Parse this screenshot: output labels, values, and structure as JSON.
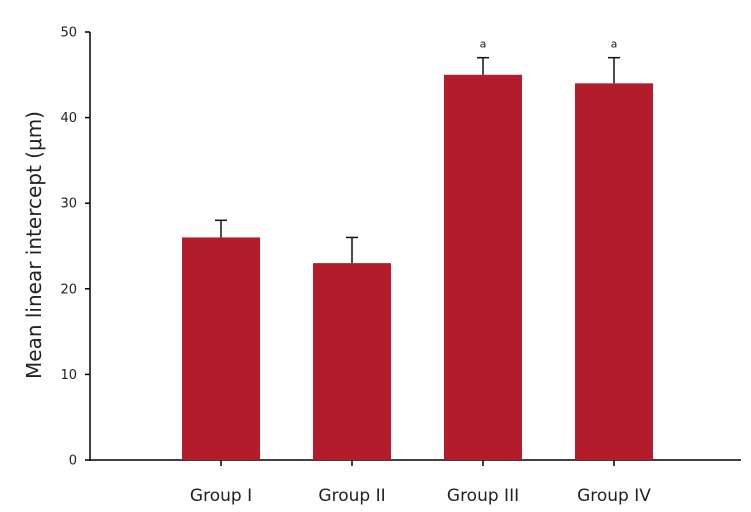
{
  "chart_data": {
    "type": "bar",
    "title": "",
    "xlabel": "",
    "ylabel": "Mean linear intercept (μm)",
    "categories": [
      "Group I",
      "Group II",
      "Group III",
      "Group IV"
    ],
    "values": [
      26,
      23,
      45,
      44
    ],
    "error_upper": [
      2,
      3,
      2,
      3
    ],
    "annotations": [
      "",
      "",
      "a",
      "a"
    ],
    "ylim": [
      0,
      50
    ],
    "yticks": [
      0,
      10,
      20,
      30,
      40,
      50
    ],
    "grid": false,
    "legend": "none",
    "bar_color": "#b31d2b",
    "axis_color": "#000000"
  }
}
